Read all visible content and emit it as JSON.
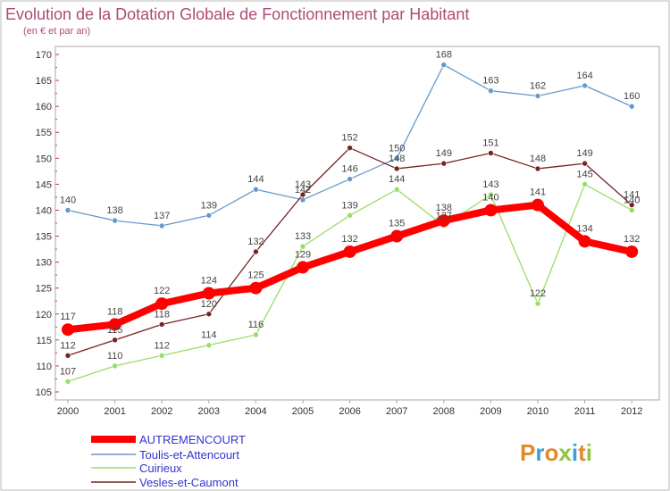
{
  "chart_data": {
    "type": "line",
    "title": "Evolution de la Dotation Globale de Fonctionnement par Habitant",
    "subtitle": "(en € et par an)",
    "xlabel": "",
    "ylabel": "",
    "categories": [
      "2000",
      "2001",
      "2002",
      "2003",
      "2004",
      "2005",
      "2006",
      "2007",
      "2008",
      "2009",
      "2010",
      "2011",
      "2012"
    ],
    "ylim": [
      105,
      170
    ],
    "yticks": [
      105,
      110,
      115,
      120,
      125,
      130,
      135,
      140,
      145,
      150,
      155,
      160,
      165,
      170
    ],
    "grid": false,
    "legend_position": "bottom-left",
    "series": [
      {
        "name": "AUTREMENCOURT",
        "color": "#ff0000",
        "values": [
          117,
          118,
          122,
          124,
          125,
          129,
          132,
          135,
          138,
          140,
          141,
          134,
          132
        ]
      },
      {
        "name": "Toulis-et-Attencourt",
        "color": "#6699cc",
        "values": [
          140,
          138,
          137,
          139,
          144,
          142,
          146,
          150,
          168,
          163,
          162,
          164,
          160
        ]
      },
      {
        "name": "Cuirieux",
        "color": "#99dd66",
        "values": [
          107,
          110,
          112,
          114,
          116,
          133,
          139,
          144,
          137,
          143,
          122,
          145,
          140
        ]
      },
      {
        "name": "Vesles-et-Caumont",
        "color": "#772222",
        "values": [
          112,
          115,
          118,
          120,
          132,
          143,
          152,
          148,
          149,
          151,
          148,
          149,
          141
        ]
      }
    ]
  },
  "logo": {
    "text": "Proxiti",
    "colors": [
      "#e08a2a",
      "#3aa0d8",
      "#e08a2a",
      "#8cc63f",
      "#3aa0d8",
      "#e08a2a",
      "#8cc63f"
    ]
  }
}
